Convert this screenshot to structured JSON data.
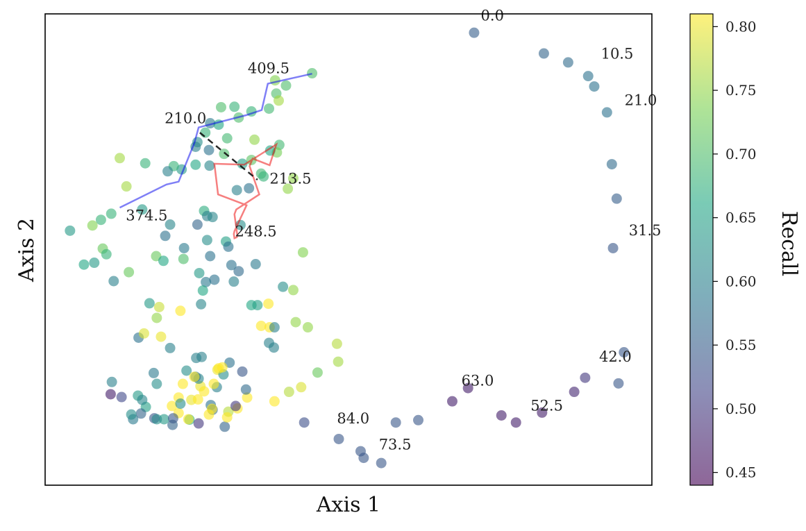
{
  "chart_data": {
    "type": "scatter",
    "xlabel": "Axis 1",
    "ylabel": "Axis 2",
    "colorbar": {
      "label": "Recall",
      "range": [
        0.44,
        0.81
      ],
      "ticks": [
        "0.45",
        "0.50",
        "0.55",
        "0.60",
        "0.65",
        "0.70",
        "0.75",
        "0.80"
      ],
      "tick_values": [
        0.45,
        0.5,
        0.55,
        0.6,
        0.65,
        0.7,
        0.75,
        0.8
      ],
      "colormap": [
        "#440154",
        "#414487",
        "#2a788e",
        "#22a884",
        "#7ad151",
        "#fde725"
      ]
    },
    "xlim": [
      0,
      1000
    ],
    "ylim": [
      0,
      1000
    ],
    "points": [
      [
        707,
        960,
        0.55
      ],
      [
        822,
        916,
        0.56
      ],
      [
        862,
        897,
        0.57
      ],
      [
        895,
        868,
        0.58
      ],
      [
        905,
        846,
        0.58
      ],
      [
        926,
        791,
        0.58
      ],
      [
        934,
        681,
        0.57
      ],
      [
        942,
        608,
        0.55
      ],
      [
        936,
        503,
        0.54
      ],
      [
        954,
        282,
        0.54
      ],
      [
        945,
        216,
        0.54
      ],
      [
        890,
        228,
        0.5
      ],
      [
        872,
        198,
        0.48
      ],
      [
        819,
        154,
        0.47
      ],
      [
        776,
        133,
        0.47
      ],
      [
        752,
        148,
        0.47
      ],
      [
        697,
        206,
        0.47
      ],
      [
        671,
        178,
        0.47
      ],
      [
        615,
        138,
        0.54
      ],
      [
        578,
        133,
        0.54
      ],
      [
        554,
        47,
        0.54
      ],
      [
        525,
        58,
        0.54
      ],
      [
        520,
        72,
        0.54
      ],
      [
        484,
        98,
        0.54
      ],
      [
        427,
        133,
        0.53
      ],
      [
        440,
        874,
        0.7
      ],
      [
        397,
        848,
        0.7
      ],
      [
        381,
        831,
        0.7
      ],
      [
        379,
        859,
        0.74
      ],
      [
        385,
        816,
        0.76
      ],
      [
        369,
        799,
        0.69
      ],
      [
        312,
        803,
        0.68
      ],
      [
        319,
        780,
        0.7
      ],
      [
        340,
        793,
        0.68
      ],
      [
        290,
        802,
        0.7
      ],
      [
        272,
        768,
        0.59
      ],
      [
        286,
        765,
        0.66
      ],
      [
        264,
        748,
        0.68
      ],
      [
        251,
        728,
        0.62
      ],
      [
        300,
        736,
        0.69
      ],
      [
        345,
        733,
        0.75
      ],
      [
        386,
        722,
        0.69
      ],
      [
        382,
        706,
        0.73
      ],
      [
        371,
        710,
        0.66
      ],
      [
        340,
        690,
        0.71
      ],
      [
        325,
        682,
        0.65
      ],
      [
        295,
        703,
        0.7
      ],
      [
        271,
        678,
        0.61
      ],
      [
        248,
        680,
        0.66
      ],
      [
        225,
        670,
        0.64
      ],
      [
        212,
        677,
        0.68
      ],
      [
        202,
        666,
        0.6
      ],
      [
        248,
        718,
        0.6
      ],
      [
        270,
        711,
        0.58
      ],
      [
        165,
        683,
        0.68
      ],
      [
        123,
        694,
        0.76
      ],
      [
        134,
        634,
        0.76
      ],
      [
        356,
        661,
        0.69
      ],
      [
        336,
        630,
        0.58
      ],
      [
        409,
        651,
        0.75
      ],
      [
        400,
        629,
        0.75
      ],
      [
        360,
        655,
        0.68
      ],
      [
        316,
        626,
        0.6
      ],
      [
        262,
        582,
        0.67
      ],
      [
        267,
        571,
        0.6
      ],
      [
        251,
        553,
        0.56
      ],
      [
        276,
        569,
        0.61
      ],
      [
        322,
        552,
        0.62
      ],
      [
        298,
        517,
        0.65
      ],
      [
        267,
        520,
        0.62
      ],
      [
        229,
        503,
        0.59
      ],
      [
        198,
        529,
        0.58
      ],
      [
        206,
        553,
        0.61
      ],
      [
        160,
        585,
        0.64
      ],
      [
        109,
        576,
        0.68
      ],
      [
        92,
        563,
        0.68
      ],
      [
        78,
        551,
        0.74
      ],
      [
        41,
        540,
        0.64
      ],
      [
        95,
        502,
        0.72
      ],
      [
        101,
        490,
        0.68
      ],
      [
        81,
        472,
        0.64
      ],
      [
        64,
        468,
        0.66
      ],
      [
        138,
        452,
        0.72
      ],
      [
        183,
        486,
        0.72
      ],
      [
        195,
        476,
        0.66
      ],
      [
        113,
        433,
        0.6
      ],
      [
        228,
        480,
        0.7
      ],
      [
        272,
        486,
        0.58
      ],
      [
        319,
        454,
        0.57
      ],
      [
        302,
        506,
        0.58
      ],
      [
        347,
        469,
        0.59
      ],
      [
        425,
        494,
        0.74
      ],
      [
        409,
        414,
        0.75
      ],
      [
        392,
        421,
        0.62
      ],
      [
        254,
        450,
        0.64
      ],
      [
        265,
        431,
        0.59
      ],
      [
        260,
        413,
        0.66
      ],
      [
        279,
        436,
        0.58
      ],
      [
        257,
        384,
        0.61
      ],
      [
        307,
        467,
        0.58
      ],
      [
        223,
        370,
        0.81
      ],
      [
        188,
        378,
        0.78
      ],
      [
        172,
        386,
        0.64
      ],
      [
        311,
        432,
        0.6
      ],
      [
        340,
        382,
        0.66
      ],
      [
        350,
        382,
        0.65
      ],
      [
        368,
        385,
        0.81
      ],
      [
        370,
        335,
        0.81
      ],
      [
        356,
        338,
        0.81
      ],
      [
        378,
        335,
        0.6
      ],
      [
        369,
        302,
        0.6
      ],
      [
        377,
        292,
        0.6
      ],
      [
        413,
        346,
        0.75
      ],
      [
        433,
        335,
        0.75
      ],
      [
        481,
        300,
        0.77
      ],
      [
        483,
        262,
        0.76
      ],
      [
        449,
        239,
        0.72
      ],
      [
        422,
        208,
        0.79
      ],
      [
        402,
        198,
        0.77
      ],
      [
        378,
        178,
        0.81
      ],
      [
        333,
        186,
        0.81
      ],
      [
        317,
        163,
        0.81
      ],
      [
        302,
        156,
        0.77
      ],
      [
        296,
        124,
        0.56
      ],
      [
        238,
        139,
        0.67
      ],
      [
        258,
        272,
        0.6
      ],
      [
        249,
        270,
        0.6
      ],
      [
        304,
        260,
        0.58
      ],
      [
        284,
        245,
        0.8
      ],
      [
        256,
        210,
        0.8
      ],
      [
        241,
        181,
        0.8
      ],
      [
        209,
        168,
        0.81
      ],
      [
        220,
        153,
        0.81
      ],
      [
        236,
        140,
        0.81
      ],
      [
        227,
        215,
        0.81
      ],
      [
        179,
        238,
        0.59
      ],
      [
        154,
        313,
        0.58
      ],
      [
        163,
        322,
        0.79
      ],
      [
        206,
        291,
        0.6
      ],
      [
        191,
        315,
        0.8
      ],
      [
        184,
        355,
        0.75
      ],
      [
        233,
        243,
        0.62
      ],
      [
        294,
        235,
        0.62
      ],
      [
        253,
        226,
        0.61
      ],
      [
        248,
        230,
        0.58
      ],
      [
        220,
        186,
        0.81
      ],
      [
        223,
        173,
        0.62
      ],
      [
        210,
        128,
        0.56
      ],
      [
        196,
        140,
        0.64
      ],
      [
        180,
        142,
        0.54
      ],
      [
        166,
        166,
        0.65
      ],
      [
        153,
        190,
        0.64
      ],
      [
        110,
        219,
        0.6
      ],
      [
        108,
        193,
        0.47
      ],
      [
        126,
        187,
        0.52
      ],
      [
        184,
        215,
        0.62
      ],
      [
        276,
        160,
        0.57
      ],
      [
        273,
        170,
        0.58
      ],
      [
        283,
        208,
        0.6
      ],
      [
        331,
        203,
        0.57
      ],
      [
        325,
        241,
        0.54
      ],
      [
        314,
        168,
        0.5
      ],
      [
        270,
        150,
        0.81
      ],
      [
        246,
        230,
        0.81
      ],
      [
        262,
        199,
        0.81
      ],
      [
        278,
        215,
        0.81
      ],
      [
        253,
        131,
        0.5
      ],
      [
        211,
        142,
        0.54
      ],
      [
        158,
        152,
        0.56
      ],
      [
        145,
        140,
        0.59
      ],
      [
        160,
        181,
        0.61
      ],
      [
        142,
        150,
        0.62
      ],
      [
        184,
        140,
        0.62
      ],
      [
        252,
        182,
        0.81
      ],
      [
        300,
        144,
        0.81
      ],
      [
        275,
        162,
        0.81
      ],
      [
        292,
        250,
        0.81
      ],
      [
        286,
        248,
        0.81
      ]
    ],
    "annotations": [
      {
        "text": "0.0",
        "x": 718,
        "y": 986
      },
      {
        "text": "10.5",
        "x": 916,
        "y": 905
      },
      {
        "text": "21.0",
        "x": 955,
        "y": 806
      },
      {
        "text": "31.5",
        "x": 962,
        "y": 530
      },
      {
        "text": "42.0",
        "x": 913,
        "y": 262
      },
      {
        "text": "52.5",
        "x": 800,
        "y": 158
      },
      {
        "text": "63.0",
        "x": 686,
        "y": 211
      },
      {
        "text": "73.5",
        "x": 550,
        "y": 76
      },
      {
        "text": "84.0",
        "x": 481,
        "y": 131
      },
      {
        "text": "409.5",
        "x": 334,
        "y": 874
      },
      {
        "text": "210.0",
        "x": 197,
        "y": 768
      },
      {
        "text": "213.5",
        "x": 370,
        "y": 640
      },
      {
        "text": "374.5",
        "x": 133,
        "y": 562
      },
      {
        "text": "248.5",
        "x": 313,
        "y": 528
      }
    ],
    "paths": [
      {
        "name": "blue-path",
        "color": "#0000ee",
        "dash": false,
        "points": [
          [
            440,
            873
          ],
          [
            367,
            852
          ],
          [
            357,
            796
          ],
          [
            331,
            785
          ],
          [
            253,
            759
          ],
          [
            246,
            726
          ],
          [
            220,
            644
          ],
          [
            200,
            638
          ],
          [
            123,
            589
          ]
        ]
      },
      {
        "name": "red-path",
        "color": "#ee0000",
        "dash": false,
        "points": [
          [
            317,
            527
          ],
          [
            312,
            524
          ],
          [
            311,
            533
          ],
          [
            312,
            539
          ],
          [
            332,
            594
          ],
          [
            285,
            617
          ],
          [
            279,
            682
          ],
          [
            328,
            680
          ],
          [
            381,
            723
          ],
          [
            370,
            679
          ],
          [
            342,
            693
          ],
          [
            337,
            677
          ],
          [
            353,
            617
          ],
          [
            315,
            585
          ],
          [
            312,
            575
          ],
          [
            317,
            527
          ]
        ]
      },
      {
        "name": "black-dashed-path",
        "color": "#111111",
        "dash": true,
        "points": [
          [
            255,
            748
          ],
          [
            350,
            648
          ]
        ]
      }
    ]
  }
}
